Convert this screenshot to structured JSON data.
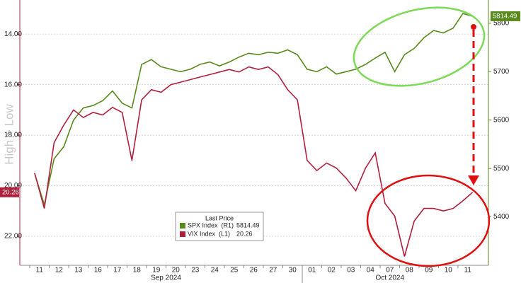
{
  "chart_data": {
    "type": "line",
    "y_label": "High > Low",
    "invert_y": true,
    "grid": true,
    "categories": [
      "11",
      null,
      "12",
      null,
      "13",
      null,
      "16",
      null,
      "17",
      null,
      "18",
      null,
      "19",
      null,
      "20",
      null,
      "23",
      null,
      "24",
      null,
      "25",
      null,
      "26",
      null,
      "27",
      null,
      "30",
      null,
      "01",
      null,
      "02",
      null,
      "03",
      null,
      "04",
      null,
      "07",
      null,
      "08",
      null,
      "09",
      null,
      "10",
      null,
      "11",
      null
    ],
    "months": [
      "Sep 2024",
      "Oct 2024"
    ],
    "legend_title": "Last Price",
    "series": [
      {
        "name": "SPX Index  (R1)",
        "color": "#5a8a1e",
        "axis": "y2",
        "last_value": 5814.49,
        "values": [
          5490,
          5425,
          5520,
          5545,
          5600,
          5625,
          5630,
          5640,
          5660,
          5635,
          5625,
          5715,
          5725,
          5710,
          5705,
          5700,
          5705,
          5715,
          5720,
          5712,
          5720,
          5730,
          5738,
          5735,
          5740,
          5738,
          5745,
          5735,
          5705,
          5700,
          5710,
          5695,
          5700,
          5705,
          5715,
          5728,
          5740,
          5700,
          5735,
          5748,
          5770,
          5785,
          5780,
          5790,
          5820,
          5814.49
        ]
      },
      {
        "name": "VIX Index  (L1)",
        "color": "#b0203c",
        "axis": "y",
        "last_value": 20.26,
        "values": [
          19.5,
          20.9,
          18.3,
          17.6,
          17.0,
          17.3,
          17.1,
          17.2,
          16.9,
          17.1,
          19.0,
          16.6,
          16.2,
          16.3,
          16.0,
          15.9,
          15.8,
          15.7,
          15.6,
          15.5,
          15.4,
          15.5,
          15.3,
          15.4,
          15.3,
          15.6,
          16.2,
          16.6,
          19.0,
          19.4,
          19.1,
          19.3,
          19.7,
          20.2,
          19.3,
          18.7,
          20.7,
          21.2,
          22.8,
          21.4,
          20.9,
          20.9,
          21.0,
          20.9,
          20.6,
          20.26
        ]
      }
    ],
    "ylim": [
      12.65,
      23.15
    ],
    "yticks": [
      {
        "value": 14,
        "label": "14.00"
      },
      {
        "value": 16,
        "label": "16.00"
      },
      {
        "value": 18,
        "label": "18.00"
      },
      {
        "value": 20,
        "label": "20.00"
      },
      {
        "value": 22,
        "label": "22.00"
      }
    ],
    "y2lim": [
      5300,
      5848
    ],
    "y2ticks": [
      5400,
      5500,
      5600,
      5700,
      5800
    ]
  }
}
